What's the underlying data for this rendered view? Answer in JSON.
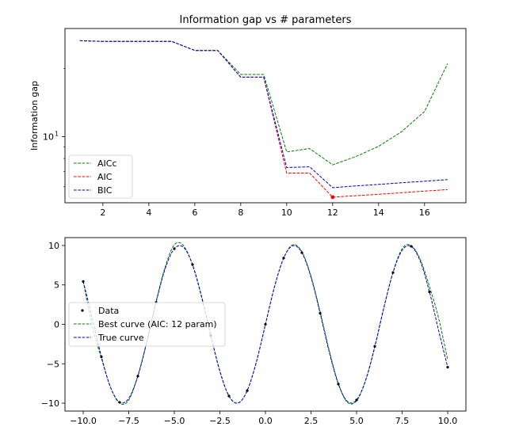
{
  "chart_data": [
    {
      "type": "line",
      "title": "Information gap vs # parameters",
      "xlabel": "",
      "ylabel": "Information gap",
      "xlim": [
        0.35,
        17.8
      ],
      "ylim": [
        5.1,
        30
      ],
      "yscale": "log",
      "xticks": [
        2,
        4,
        6,
        8,
        10,
        12,
        14,
        16
      ],
      "yticks": [
        {
          "value": 10,
          "label": "10",
          "sup": "1"
        }
      ],
      "grid": false,
      "legend": "lower-left",
      "x": [
        1,
        2,
        3,
        4,
        5,
        6,
        7,
        8,
        9,
        10,
        11,
        12,
        13,
        14,
        15,
        16,
        17
      ],
      "series": [
        {
          "name": "AICc",
          "color": "#008000",
          "values": [
            26.5,
            26.3,
            26.3,
            26.3,
            26.3,
            24.0,
            24.0,
            18.8,
            18.8,
            8.55,
            8.85,
            7.5,
            8.15,
            9.05,
            10.5,
            12.9,
            21.0
          ]
        },
        {
          "name": "AIC",
          "color": "#ff0000",
          "values": [
            26.5,
            26.3,
            26.3,
            26.3,
            26.3,
            24.0,
            24.0,
            18.3,
            18.3,
            6.9,
            6.9,
            5.4,
            5.48,
            5.56,
            5.65,
            5.74,
            5.83
          ]
        },
        {
          "name": "BIC",
          "color": "#0000cd",
          "values": [
            26.5,
            26.3,
            26.3,
            26.3,
            26.3,
            24.0,
            24.0,
            18.3,
            18.3,
            7.3,
            7.35,
            5.95,
            6.05,
            6.15,
            6.25,
            6.35,
            6.45
          ]
        }
      ],
      "marker": {
        "series": "AIC",
        "x": 12,
        "y": 5.4,
        "color": "#ff0000"
      }
    },
    {
      "type": "line",
      "title": "",
      "xlabel": "",
      "ylabel": "",
      "xlim": [
        -11.0,
        11.0
      ],
      "ylim": [
        -11.0,
        11.0
      ],
      "xticks": [
        {
          "value": -10,
          "label": "−10.0"
        },
        {
          "value": -7.5,
          "label": "−7.5"
        },
        {
          "value": -5,
          "label": "−5.0"
        },
        {
          "value": -2.5,
          "label": "−2.5"
        },
        {
          "value": 0,
          "label": "0.0"
        },
        {
          "value": 2.5,
          "label": "2.5"
        },
        {
          "value": 5,
          "label": "5.0"
        },
        {
          "value": 7.5,
          "label": "7.5"
        },
        {
          "value": 10,
          "label": "10.0"
        }
      ],
      "yticks": [
        {
          "value": 10,
          "label": "10"
        },
        {
          "value": 5,
          "label": "5"
        },
        {
          "value": 0,
          "label": "0"
        },
        {
          "value": -5,
          "label": "−5"
        },
        {
          "value": -10,
          "label": "−10"
        }
      ],
      "grid": false,
      "legend": "center-left",
      "scatter": {
        "name": "Data",
        "color": "#000000",
        "x": [
          -10.0,
          -9.0,
          -8.0,
          -7.0,
          -6.0,
          -5.0,
          -4.0,
          -3.0,
          -2.0,
          -1.0,
          0.0,
          1.0,
          2.0,
          3.0,
          4.0,
          5.0,
          6.0,
          7.0,
          8.0,
          9.0,
          10.0
        ],
        "y": [
          5.44,
          -4.12,
          -9.89,
          -6.57,
          2.79,
          9.59,
          7.57,
          -1.41,
          -9.09,
          -8.41,
          0.0,
          8.41,
          9.09,
          1.41,
          -7.57,
          -9.59,
          -2.79,
          6.57,
          9.89,
          4.12,
          -5.44
        ]
      },
      "series": [
        {
          "name": "Best curve (AIC: 12 param)",
          "color": "#008000",
          "x": [
            -10.0,
            -9.5,
            -9.0,
            -8.5,
            -8.0,
            -7.5,
            -7.0,
            -6.5,
            -6.0,
            -5.5,
            -5.0,
            -4.5,
            -4.0,
            -3.5,
            -3.0,
            -2.5,
            -2.0,
            -1.5,
            -1.0,
            -0.5,
            0.0,
            0.5,
            1.0,
            1.5,
            2.0,
            2.5,
            3.0,
            3.5,
            4.0,
            4.5,
            5.0,
            5.5,
            6.0,
            6.5,
            7.0,
            7.5,
            8.0,
            8.5,
            9.0,
            9.5,
            10.0
          ],
          "values": [
            5.5,
            -0.3,
            -4.3,
            -8.0,
            -10.0,
            -9.6,
            -6.5,
            -2.1,
            2.9,
            7.3,
            10.1,
            10.0,
            7.5,
            3.4,
            -1.4,
            -5.9,
            -9.1,
            -10.0,
            -8.4,
            -4.8,
            0.0,
            4.8,
            8.4,
            10.1,
            9.2,
            6.1,
            1.6,
            -3.3,
            -7.5,
            -9.9,
            -9.7,
            -7.1,
            -2.9,
            2.1,
            6.6,
            9.6,
            10.0,
            8.2,
            4.8,
            0.8,
            -4.5
          ]
        },
        {
          "name": "True curve",
          "color": "#0000cd",
          "x": [
            -10.0,
            -9.5,
            -9.0,
            -8.5,
            -8.0,
            -7.5,
            -7.0,
            -6.5,
            -6.0,
            -5.5,
            -5.0,
            -4.5,
            -4.0,
            -3.5,
            -3.0,
            -2.5,
            -2.0,
            -1.5,
            -1.0,
            -0.5,
            0.0,
            0.5,
            1.0,
            1.5,
            2.0,
            2.5,
            3.0,
            3.5,
            4.0,
            4.5,
            5.0,
            5.5,
            6.0,
            6.5,
            7.0,
            7.5,
            8.0,
            8.5,
            9.0,
            9.5,
            10.0
          ],
          "values": [
            5.44,
            0.75,
            -4.12,
            -7.98,
            -9.89,
            -9.38,
            -6.57,
            -2.15,
            2.79,
            7.06,
            9.59,
            9.78,
            7.57,
            3.51,
            -1.41,
            -5.98,
            -9.09,
            -9.97,
            -8.41,
            -4.79,
            0.0,
            4.79,
            8.41,
            9.97,
            9.09,
            5.98,
            1.41,
            -3.51,
            -7.57,
            -9.78,
            -9.59,
            -7.06,
            -2.79,
            2.15,
            6.57,
            9.38,
            9.89,
            7.98,
            4.12,
            -0.75,
            -5.44
          ]
        }
      ]
    }
  ]
}
